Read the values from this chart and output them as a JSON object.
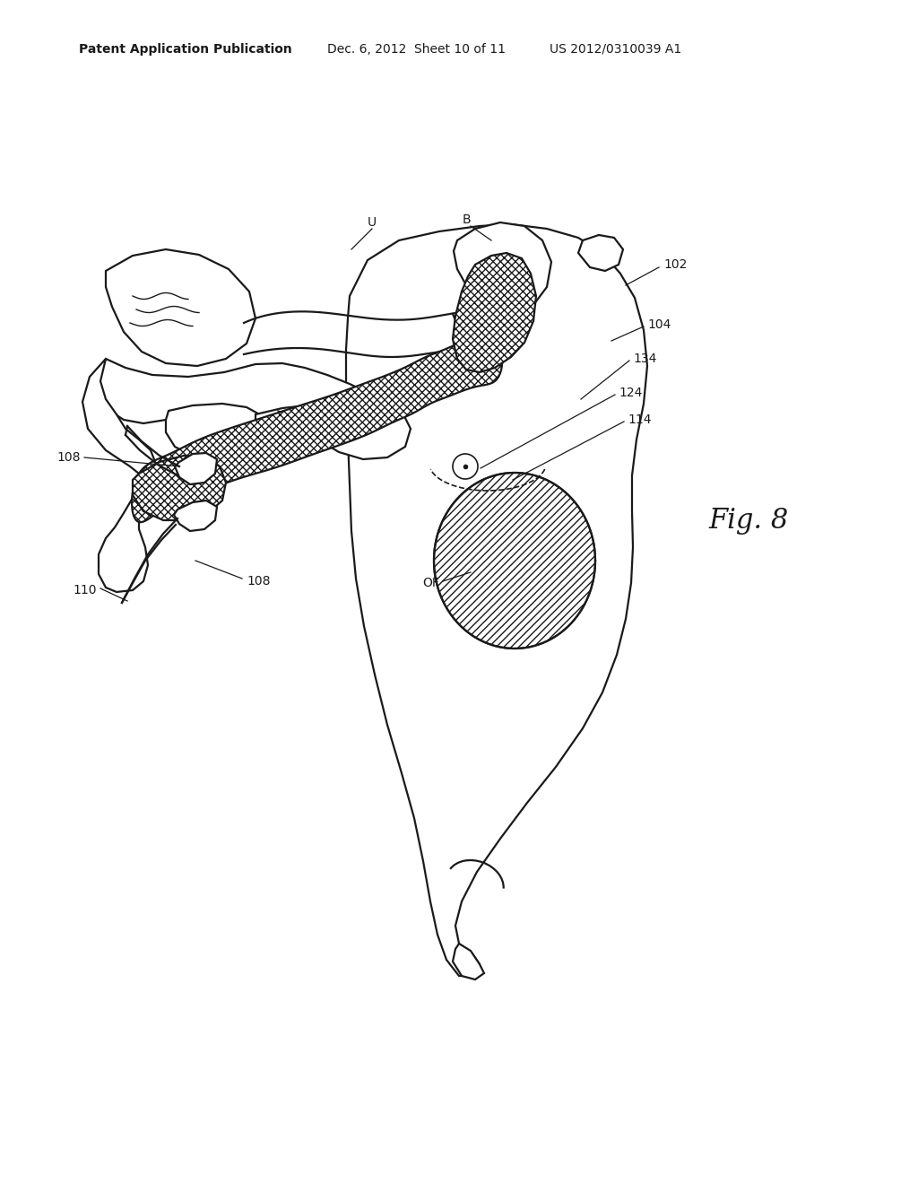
{
  "bg_color": "#ffffff",
  "line_color": "#1a1a1a",
  "header_left": "Patent Application Publication",
  "header_mid": "Dec. 6, 2012",
  "header_sheet": "Sheet 10 of 11",
  "header_right": "US 2012/0310039 A1",
  "fig_label": "Fig. 8",
  "label_fontsize": 10,
  "header_fontsize": 10,
  "fig_fontsize": 22,
  "lw_main": 1.6,
  "lw_thin": 1.2
}
